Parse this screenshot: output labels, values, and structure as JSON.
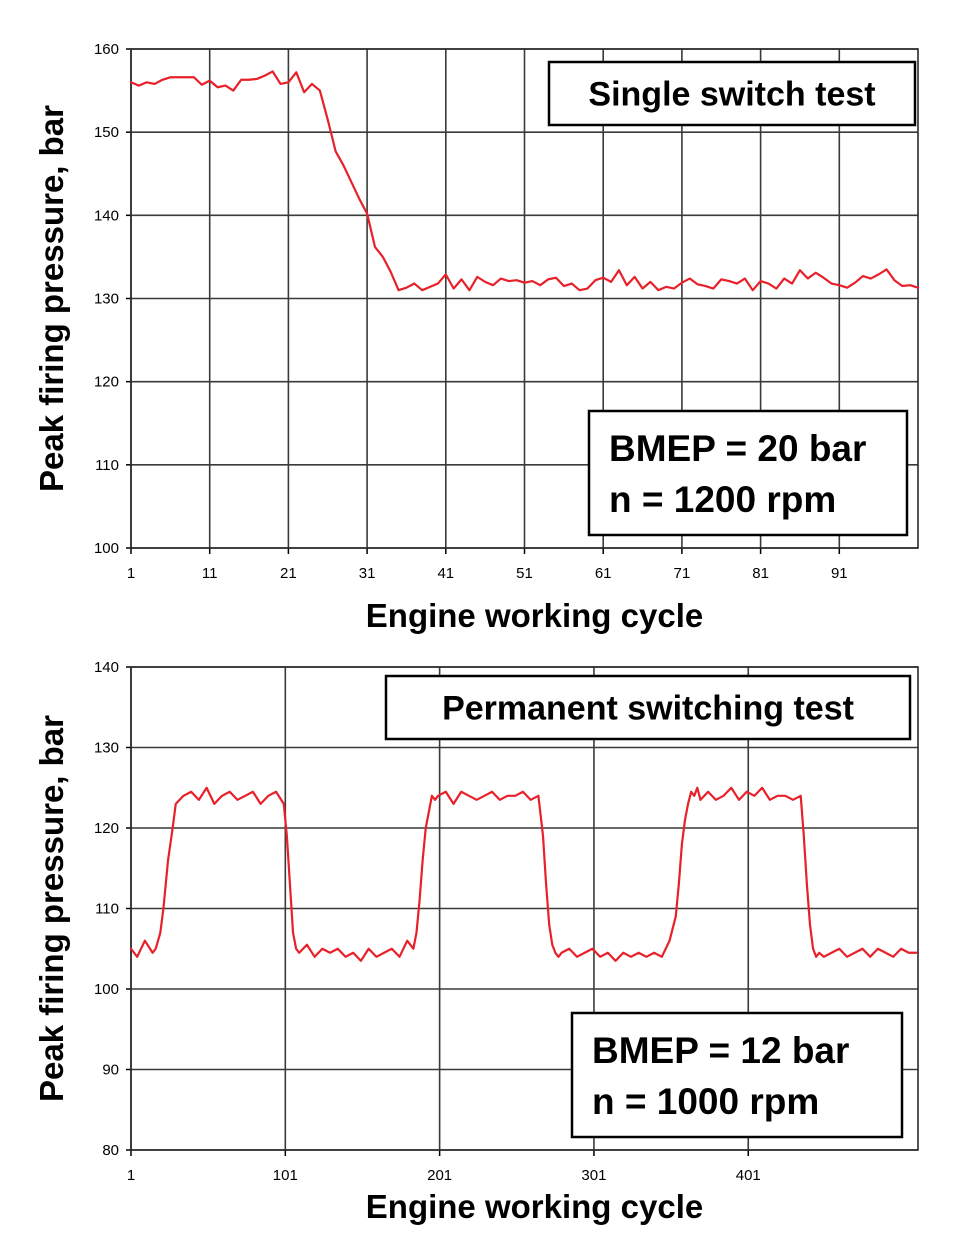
{
  "chart_data": [
    {
      "type": "line",
      "title": "Single switch test",
      "annotation": [
        "BMEP = 20 bar",
        "n = 1200 rpm"
      ],
      "xlabel": "Engine working cycle",
      "ylabel": "Peak firing pressure, bar",
      "xlim": [
        1,
        101
      ],
      "ylim": [
        100,
        160
      ],
      "x_ticks": [
        1,
        11,
        21,
        31,
        41,
        51,
        61,
        71,
        81,
        91
      ],
      "y_ticks": [
        100,
        110,
        120,
        130,
        140,
        150,
        160
      ],
      "grid": true,
      "color": "#e8202a",
      "series": [
        {
          "x": [
            1,
            2,
            3,
            4,
            5,
            6,
            7,
            8,
            9,
            10,
            11,
            12,
            13,
            14,
            15,
            16,
            17,
            18,
            19,
            20,
            21,
            22,
            23,
            24,
            25,
            26,
            27,
            28,
            29,
            30,
            31,
            32,
            33,
            34,
            35,
            36,
            37,
            38,
            39,
            40,
            41,
            42,
            43,
            44,
            45,
            46,
            47,
            48,
            49,
            50,
            51,
            52,
            53,
            54,
            55,
            56,
            57,
            58,
            59,
            60,
            61,
            62,
            63,
            64,
            65,
            66,
            67,
            68,
            69,
            70,
            71,
            72,
            73,
            74,
            75,
            76,
            77,
            78,
            79,
            80,
            81,
            82,
            83,
            84,
            85,
            86,
            87,
            88,
            89,
            90,
            91,
            92,
            93,
            94,
            95,
            96,
            97,
            98,
            99,
            100,
            101
          ],
          "y": [
            156,
            155.6,
            156,
            155.8,
            156.3,
            156.6,
            156.6,
            156.6,
            156.6,
            155.7,
            156.2,
            155.4,
            155.6,
            155,
            156.3,
            156.3,
            156.4,
            156.8,
            157.3,
            155.8,
            156,
            157.2,
            154.8,
            155.8,
            155,
            151.5,
            147.7,
            146,
            144,
            142,
            140.2,
            136.2,
            135,
            133.2,
            131,
            131.3,
            131.8,
            131,
            131.4,
            131.8,
            132.9,
            131.2,
            132.3,
            131,
            132.6,
            132,
            131.6,
            132.4,
            132.1,
            132.2,
            131.9,
            132.1,
            131.6,
            132.3,
            132.5,
            131.5,
            131.8,
            131,
            131.2,
            132.2,
            132.5,
            132,
            133.4,
            131.6,
            132.6,
            131.2,
            132,
            131,
            131.4,
            131.2,
            131.9,
            132.4,
            131.7,
            131.5,
            131.2,
            132.3,
            132.1,
            131.8,
            132.4,
            131,
            132.1,
            131.8,
            131.2,
            132.4,
            131.8,
            133.4,
            132.4,
            133.1,
            132.5,
            131.8,
            131.6,
            131.3,
            131.9,
            132.7,
            132.4,
            132.9,
            133.5,
            132.2,
            131.5,
            131.6,
            131.3
          ]
        }
      ]
    },
    {
      "type": "line",
      "title": "Permanent switching test",
      "annotation": [
        "BMEP = 12 bar",
        "n = 1000 rpm"
      ],
      "xlabel": "Engine working cycle",
      "ylabel": "Peak firing pressure, bar",
      "xlim": [
        1,
        511
      ],
      "ylim": [
        80,
        140
      ],
      "x_ticks": [
        1,
        101,
        201,
        301,
        401
      ],
      "y_ticks": [
        80,
        90,
        100,
        110,
        120,
        130,
        140
      ],
      "grid": true,
      "color": "#e8202a",
      "series": [
        {
          "x": [
            1,
            5,
            10,
            15,
            17,
            20,
            22,
            25,
            28,
            30,
            35,
            40,
            45,
            50,
            55,
            60,
            65,
            70,
            75,
            80,
            85,
            90,
            95,
            100,
            102,
            104,
            106,
            108,
            110,
            115,
            120,
            125,
            130,
            135,
            140,
            145,
            150,
            155,
            160,
            165,
            170,
            175,
            180,
            184,
            186,
            188,
            190,
            192,
            194,
            196,
            198,
            200,
            205,
            210,
            215,
            220,
            225,
            230,
            235,
            240,
            245,
            250,
            255,
            260,
            265,
            268,
            270,
            272,
            274,
            276,
            278,
            280,
            285,
            290,
            295,
            300,
            305,
            310,
            315,
            320,
            325,
            330,
            335,
            340,
            345,
            350,
            354,
            356,
            358,
            360,
            362,
            364,
            366,
            368,
            370,
            375,
            380,
            385,
            390,
            395,
            400,
            405,
            410,
            415,
            420,
            425,
            430,
            435,
            437,
            439,
            441,
            443,
            445,
            447,
            450,
            455,
            460,
            465,
            470,
            475,
            480,
            485,
            490,
            495,
            500,
            505,
            510
          ],
          "y": [
            105,
            104,
            106,
            104.5,
            105,
            107,
            110,
            116,
            120,
            123,
            124,
            124.5,
            123.5,
            125,
            123,
            124,
            124.5,
            123.5,
            124,
            124.5,
            123,
            124,
            124.5,
            123,
            119,
            113,
            107,
            105,
            104.5,
            105.5,
            104,
            105,
            104.5,
            105,
            104,
            104.5,
            103.5,
            105,
            104,
            104.5,
            105,
            104,
            106,
            105,
            107,
            111,
            116,
            120,
            122,
            124,
            123.5,
            124,
            124.5,
            123,
            124.5,
            124,
            123.5,
            124,
            124.5,
            123.5,
            124,
            124,
            124.5,
            123.5,
            124,
            119,
            113,
            108,
            105.5,
            104.5,
            104,
            104.5,
            105,
            104,
            104.5,
            105,
            104,
            104.5,
            103.5,
            104.5,
            104,
            104.5,
            104,
            104.5,
            104,
            106,
            109,
            113,
            118,
            121,
            123,
            124.5,
            124,
            125,
            123.5,
            124.5,
            123.5,
            124,
            125,
            123.5,
            124.5,
            124,
            125,
            123.5,
            124,
            124,
            123.5,
            124,
            119,
            113,
            108,
            105,
            104,
            104.5,
            104,
            104.5,
            105,
            104,
            104.5,
            105,
            104,
            105,
            104.5,
            104,
            105,
            104.5,
            104.5
          ]
        }
      ]
    }
  ]
}
